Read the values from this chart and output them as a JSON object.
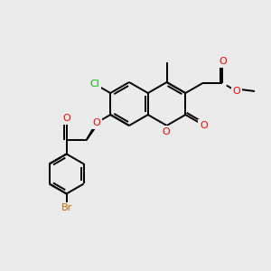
{
  "bg_color": "#ebebeb",
  "bond_color": "#000000",
  "bond_width": 1.4,
  "atom_colors": {
    "Cl": "#00bb00",
    "O": "#ff0000",
    "Br": "#cc6600",
    "C": "#000000"
  },
  "figsize": [
    3.0,
    3.0
  ],
  "dpi": 100
}
